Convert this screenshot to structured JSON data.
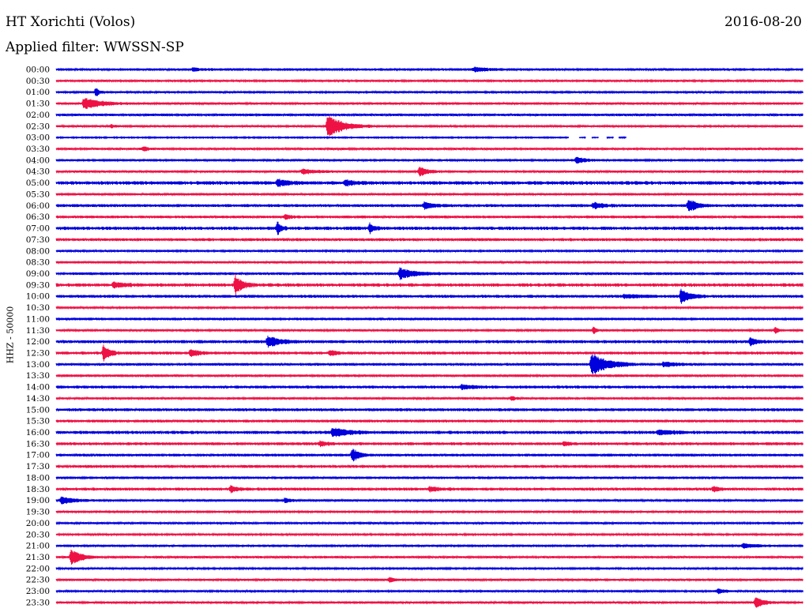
{
  "header": {
    "station": "HT Xorichti (Volos)",
    "date": "2016-08-20",
    "filter": "Applied filter: WWSSN-SP"
  },
  "chart_data": {
    "type": "line",
    "ylabel": "HHZ - 50000",
    "row_labels": [
      "00:00",
      "00:30",
      "01:00",
      "01:30",
      "02:00",
      "02:30",
      "03:00",
      "03:30",
      "04:00",
      "04:30",
      "05:00",
      "05:30",
      "06:00",
      "06:30",
      "07:00",
      "07:30",
      "08:00",
      "08:30",
      "09:00",
      "09:30",
      "10:00",
      "10:30",
      "11:00",
      "11:30",
      "12:00",
      "12:30",
      "13:00",
      "13:30",
      "14:00",
      "14:30",
      "15:00",
      "15:30",
      "16:00",
      "16:30",
      "17:00",
      "17:30",
      "18:00",
      "18:30",
      "19:00",
      "19:30",
      "20:00",
      "20:30",
      "21:00",
      "21:30",
      "22:00",
      "22:30",
      "23:00",
      "23:30"
    ],
    "colors": [
      "#0000dd",
      "#ee1144"
    ],
    "noise_levels": [
      1.1,
      0.9,
      0.9,
      1.0,
      1.1,
      0.9,
      0.6,
      1.0,
      1.0,
      1.0,
      1.6,
      1.0,
      1.3,
      1.2,
      1.5,
      1.3,
      0.9,
      1.0,
      1.2,
      1.5,
      1.3,
      0.9,
      1.1,
      1.0,
      1.4,
      1.3,
      1.2,
      1.1,
      1.3,
      1.0,
      1.3,
      1.2,
      1.4,
      1.3,
      1.2,
      1.3,
      1.1,
      1.3,
      1.0,
      0.9,
      0.9,
      0.8,
      1.0,
      1.0,
      0.9,
      1.0,
      0.9,
      1.0
    ],
    "events": [
      {
        "row": 0,
        "minute": 16.8,
        "amplitude": 3,
        "duration": 1.2
      },
      {
        "row": 0,
        "minute": 5.5,
        "amplitude": 2,
        "duration": 0.8
      },
      {
        "row": 2,
        "minute": 1.6,
        "amplitude": 7,
        "duration": 0.3
      },
      {
        "row": 3,
        "minute": 1.1,
        "amplitude": 7,
        "duration": 2.0
      },
      {
        "row": 5,
        "minute": 10.9,
        "amplitude": 14,
        "duration": 1.8
      },
      {
        "row": 5,
        "minute": 2.2,
        "amplitude": 2,
        "duration": 0.6
      },
      {
        "row": 7,
        "minute": 3.5,
        "amplitude": 3,
        "duration": 0.5
      },
      {
        "row": 8,
        "minute": 20.9,
        "amplitude": 4,
        "duration": 0.9
      },
      {
        "row": 9,
        "minute": 14.6,
        "amplitude": 6,
        "duration": 0.9
      },
      {
        "row": 9,
        "minute": 9.9,
        "amplitude": 3,
        "duration": 1.5
      },
      {
        "row": 10,
        "minute": 8.9,
        "amplitude": 4,
        "duration": 1.2
      },
      {
        "row": 10,
        "minute": 11.6,
        "amplitude": 3,
        "duration": 1.3
      },
      {
        "row": 12,
        "minute": 14.8,
        "amplitude": 4,
        "duration": 1.0
      },
      {
        "row": 12,
        "minute": 25.4,
        "amplitude": 8,
        "duration": 1.0
      },
      {
        "row": 12,
        "minute": 21.6,
        "amplitude": 4,
        "duration": 1.0
      },
      {
        "row": 13,
        "minute": 9.2,
        "amplitude": 3,
        "duration": 0.6
      },
      {
        "row": 14,
        "minute": 8.9,
        "amplitude": 8,
        "duration": 0.4
      },
      {
        "row": 14,
        "minute": 12.6,
        "amplitude": 6,
        "duration": 0.4
      },
      {
        "row": 18,
        "minute": 13.8,
        "amplitude": 7,
        "duration": 1.6
      },
      {
        "row": 19,
        "minute": 7.2,
        "amplitude": 12,
        "duration": 0.8
      },
      {
        "row": 19,
        "minute": 2.3,
        "amplitude": 3,
        "duration": 1.2
      },
      {
        "row": 20,
        "minute": 25.1,
        "amplitude": 9,
        "duration": 1.0
      },
      {
        "row": 20,
        "minute": 22.8,
        "amplitude": 2,
        "duration": 1.8
      },
      {
        "row": 23,
        "minute": 21.6,
        "amplitude": 6,
        "duration": 0.2
      },
      {
        "row": 23,
        "minute": 28.9,
        "amplitude": 4,
        "duration": 0.3
      },
      {
        "row": 24,
        "minute": 8.5,
        "amplitude": 7,
        "duration": 1.3
      },
      {
        "row": 24,
        "minute": 27.9,
        "amplitude": 6,
        "duration": 0.6
      },
      {
        "row": 25,
        "minute": 1.9,
        "amplitude": 10,
        "duration": 0.7
      },
      {
        "row": 25,
        "minute": 5.4,
        "amplitude": 4,
        "duration": 1.0
      },
      {
        "row": 25,
        "minute": 11.0,
        "amplitude": 4,
        "duration": 0.6
      },
      {
        "row": 26,
        "minute": 21.5,
        "amplitude": 14,
        "duration": 1.8
      },
      {
        "row": 26,
        "minute": 24.4,
        "amplitude": 3,
        "duration": 1.4
      },
      {
        "row": 28,
        "minute": 16.3,
        "amplitude": 3,
        "duration": 1.2
      },
      {
        "row": 29,
        "minute": 18.3,
        "amplitude": 3,
        "duration": 0.4
      },
      {
        "row": 32,
        "minute": 11.1,
        "amplitude": 6,
        "duration": 1.8
      },
      {
        "row": 32,
        "minute": 24.2,
        "amplitude": 3,
        "duration": 1.6
      },
      {
        "row": 33,
        "minute": 20.4,
        "amplitude": 3,
        "duration": 0.5
      },
      {
        "row": 33,
        "minute": 10.6,
        "amplitude": 3,
        "duration": 0.8
      },
      {
        "row": 34,
        "minute": 11.9,
        "amplitude": 9,
        "duration": 0.7
      },
      {
        "row": 37,
        "minute": 7.0,
        "amplitude": 4,
        "duration": 0.9
      },
      {
        "row": 37,
        "minute": 15.0,
        "amplitude": 3,
        "duration": 1.2
      },
      {
        "row": 37,
        "minute": 26.4,
        "amplitude": 3,
        "duration": 0.8
      },
      {
        "row": 38,
        "minute": 0.2,
        "amplitude": 5,
        "duration": 1.3
      },
      {
        "row": 38,
        "minute": 9.2,
        "amplitude": 3,
        "duration": 0.6
      },
      {
        "row": 42,
        "minute": 27.6,
        "amplitude": 3,
        "duration": 1.3
      },
      {
        "row": 43,
        "minute": 0.6,
        "amplitude": 11,
        "duration": 1.1
      },
      {
        "row": 45,
        "minute": 13.4,
        "amplitude": 3,
        "duration": 0.5
      },
      {
        "row": 46,
        "minute": 26.6,
        "amplitude": 3,
        "duration": 1.0
      },
      {
        "row": 47,
        "minute": 28.1,
        "amplitude": 7,
        "duration": 0.9
      }
    ],
    "gaps": [
      {
        "row": 6,
        "minute_start": 20.6,
        "minute_end": 21.0
      },
      {
        "row": 6,
        "minute_start": 21.3,
        "minute_end": 21.5
      },
      {
        "row": 6,
        "minute_start": 21.8,
        "minute_end": 22.1
      },
      {
        "row": 6,
        "minute_start": 22.4,
        "minute_end": 22.6
      },
      {
        "row": 6,
        "minute_start": 22.9,
        "minute_end": 30.0
      }
    ]
  }
}
